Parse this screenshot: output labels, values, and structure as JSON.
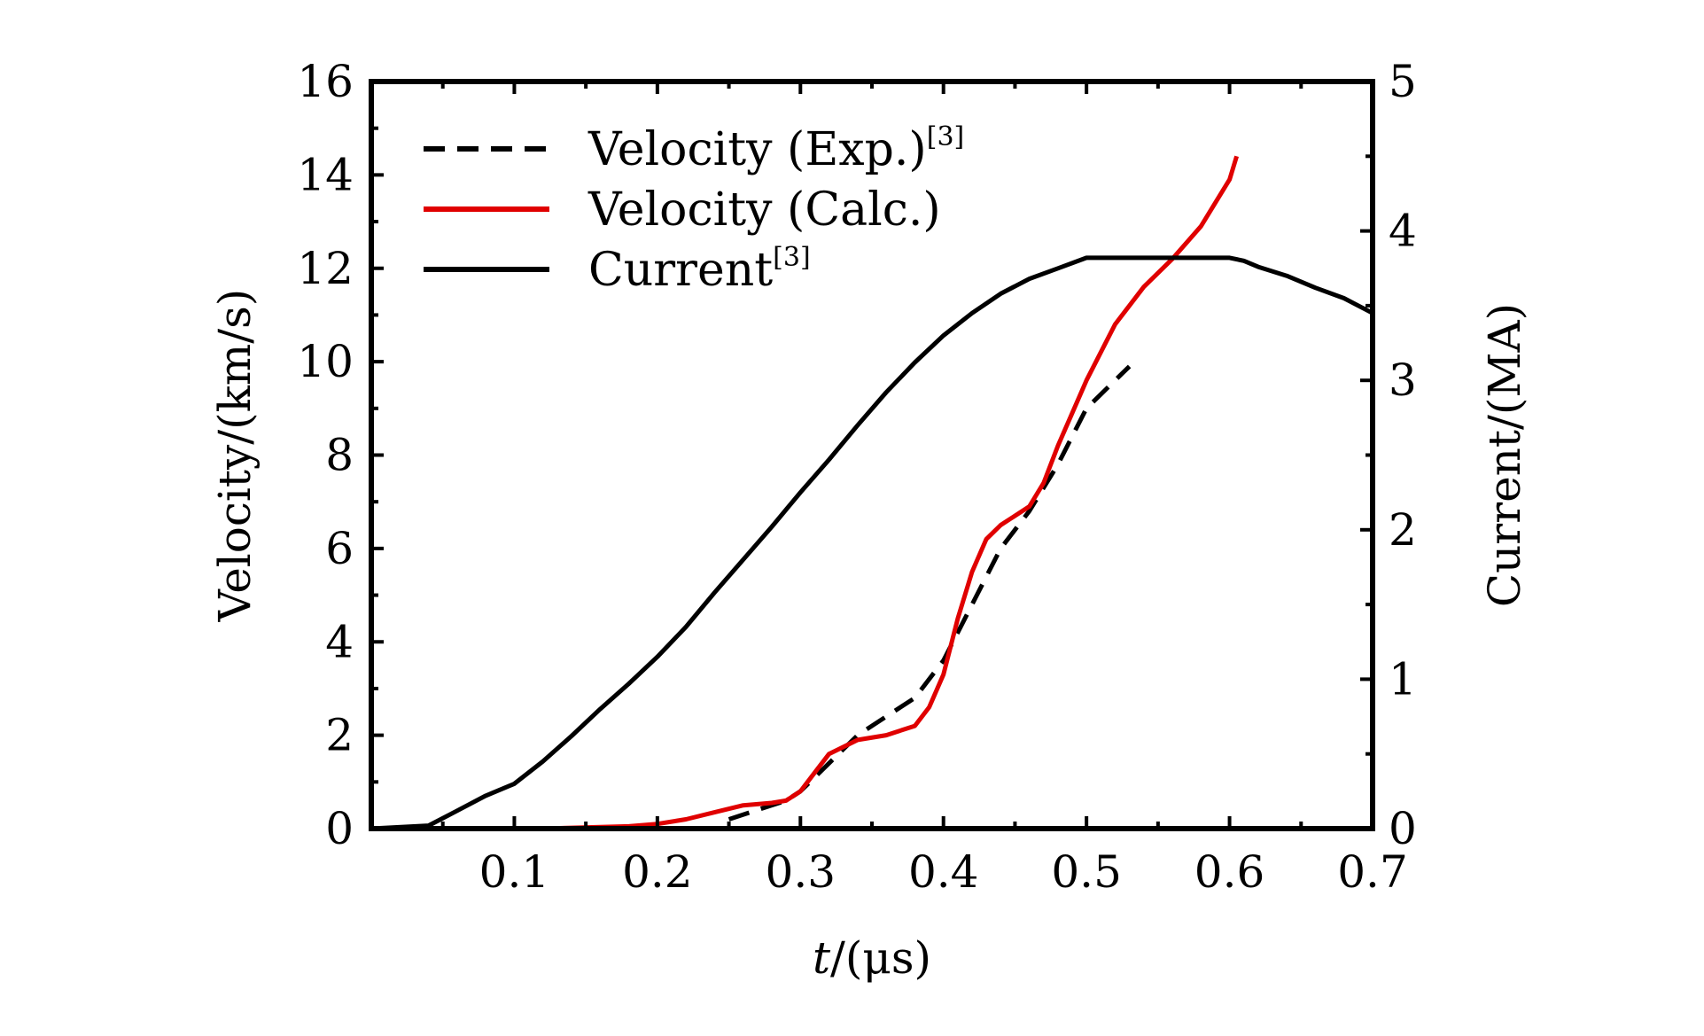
{
  "chart_data": {
    "type": "line",
    "title": "",
    "xlabel_italic": "t",
    "xlabel_rest": "/(μs)",
    "ylabel": "Velocity/(km/s)",
    "y2label": "Current/(MA)",
    "xlim": [
      0,
      0.7
    ],
    "ylim": [
      0,
      16
    ],
    "y2lim": [
      0,
      5
    ],
    "xticks": [
      0.1,
      0.2,
      0.3,
      0.4,
      0.5,
      0.6,
      0.7
    ],
    "xtick_labels": [
      "0.1",
      "0.2",
      "0.3",
      "0.4",
      "0.5",
      "0.6",
      "0.7"
    ],
    "yticks": [
      0,
      2,
      4,
      6,
      8,
      10,
      12,
      14,
      16
    ],
    "ytick_labels": [
      "0",
      "2",
      "4",
      "6",
      "8",
      "10",
      "12",
      "14",
      "16"
    ],
    "y2ticks": [
      0,
      1,
      2,
      3,
      4,
      5
    ],
    "y2tick_labels": [
      "0",
      "1",
      "2",
      "3",
      "4",
      "5"
    ],
    "legend": {
      "placement": "top-left",
      "items": [
        {
          "text": "Velocity (Exp.)",
          "sup": "[3]",
          "style": "dashed",
          "color": "#000000"
        },
        {
          "text": "Velocity (Calc.)",
          "sup": "",
          "style": "solid",
          "color": "#e00000"
        },
        {
          "text": "Current",
          "sup": "[3]",
          "style": "solid",
          "color": "#000000"
        }
      ]
    },
    "series": [
      {
        "name": "Velocity (Exp.)",
        "axis": "left",
        "color": "#000000",
        "style": "dashed",
        "x": [
          0.25,
          0.27,
          0.29,
          0.3,
          0.32,
          0.34,
          0.36,
          0.38,
          0.4,
          0.42,
          0.44,
          0.46,
          0.48,
          0.5,
          0.52,
          0.53
        ],
        "y": [
          0.2,
          0.4,
          0.6,
          0.8,
          1.4,
          2.0,
          2.4,
          2.8,
          3.6,
          4.8,
          6.0,
          6.8,
          7.8,
          9.0,
          9.6,
          9.9
        ]
      },
      {
        "name": "Velocity (Calc.)",
        "axis": "left",
        "color": "#e00000",
        "style": "solid",
        "x": [
          0.12,
          0.18,
          0.2,
          0.22,
          0.24,
          0.26,
          0.28,
          0.29,
          0.3,
          0.31,
          0.32,
          0.34,
          0.36,
          0.38,
          0.39,
          0.4,
          0.41,
          0.42,
          0.43,
          0.44,
          0.46,
          0.47,
          0.48,
          0.5,
          0.52,
          0.54,
          0.56,
          0.58,
          0.6,
          0.605
        ],
        "y": [
          0.0,
          0.05,
          0.1,
          0.2,
          0.35,
          0.5,
          0.55,
          0.6,
          0.8,
          1.2,
          1.6,
          1.9,
          2.0,
          2.2,
          2.6,
          3.3,
          4.5,
          5.5,
          6.2,
          6.5,
          6.9,
          7.4,
          8.2,
          9.6,
          10.8,
          11.6,
          12.2,
          12.9,
          13.9,
          14.4
        ]
      },
      {
        "name": "Current",
        "axis": "right",
        "color": "#000000",
        "style": "solid",
        "x": [
          0.0,
          0.04,
          0.06,
          0.08,
          0.1,
          0.12,
          0.14,
          0.16,
          0.18,
          0.2,
          0.22,
          0.24,
          0.26,
          0.28,
          0.3,
          0.32,
          0.34,
          0.36,
          0.38,
          0.4,
          0.42,
          0.44,
          0.46,
          0.48,
          0.5,
          0.55,
          0.6,
          0.61,
          0.62,
          0.64,
          0.66,
          0.68,
          0.7
        ],
        "y": [
          0.0,
          0.02,
          0.12,
          0.22,
          0.3,
          0.45,
          0.62,
          0.8,
          0.97,
          1.15,
          1.35,
          1.58,
          1.8,
          2.02,
          2.25,
          2.47,
          2.7,
          2.92,
          3.12,
          3.3,
          3.45,
          3.58,
          3.68,
          3.75,
          3.82,
          3.82,
          3.82,
          3.8,
          3.76,
          3.7,
          3.62,
          3.55,
          3.45
        ]
      }
    ]
  }
}
